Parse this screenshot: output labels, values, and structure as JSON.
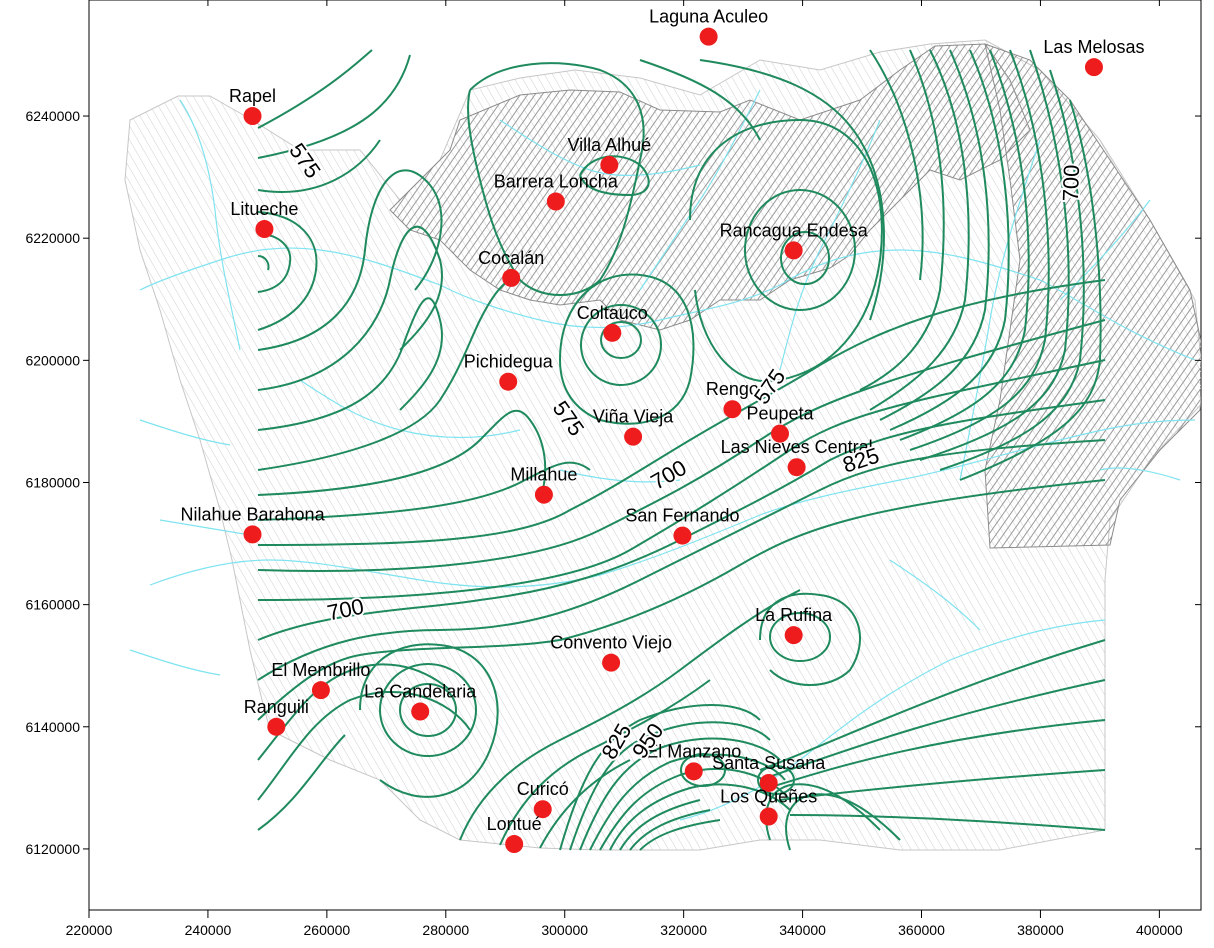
{
  "map": {
    "x_ticks": [
      "220000",
      "240000",
      "260000",
      "280000",
      "300000",
      "320000",
      "340000",
      "360000",
      "380000",
      "400000"
    ],
    "y_ticks": [
      "6120000",
      "6140000",
      "6160000",
      "6180000",
      "6200000",
      "6220000",
      "6240000"
    ],
    "x_range": [
      220000,
      407000
    ],
    "y_range": [
      6110000,
      6259000
    ],
    "colors": {
      "contour": "#1f8a5e",
      "station": "#ee1c1c",
      "river": "#7fe3f0",
      "terrain": "#a8a8a8",
      "terrain_light": "#d8d8d8",
      "frame": "#000000"
    }
  },
  "stations": [
    {
      "name": "Laguna Aculeo",
      "x": 324200,
      "y": 6253000
    },
    {
      "name": "Las Melosas",
      "x": 389000,
      "y": 6248000
    },
    {
      "name": "Rapel",
      "x": 247500,
      "y": 6240000
    },
    {
      "name": "Villa Alhué",
      "x": 307500,
      "y": 6232000
    },
    {
      "name": "Barrera Loncha",
      "x": 298500,
      "y": 6226000
    },
    {
      "name": "Litueche",
      "x": 249500,
      "y": 6221500
    },
    {
      "name": "Rancagua Endesa",
      "x": 338500,
      "y": 6218000
    },
    {
      "name": "Cocalán",
      "x": 291000,
      "y": 6213500
    },
    {
      "name": "Coltauco",
      "x": 308000,
      "y": 6204500
    },
    {
      "name": "Pichidegua",
      "x": 290500,
      "y": 6196500
    },
    {
      "name": "Rengo",
      "x": 328200,
      "y": 6192000
    },
    {
      "name": "Peupeta",
      "x": 336200,
      "y": 6188000
    },
    {
      "name": "Viña Vieja",
      "x": 311500,
      "y": 6187500
    },
    {
      "name": "Las Nieves Central",
      "x": 339000,
      "y": 6182500
    },
    {
      "name": "Millahue",
      "x": 296500,
      "y": 6178000
    },
    {
      "name": "Nilahue Barahona",
      "x": 247500,
      "y": 6171500
    },
    {
      "name": "San Fernando",
      "x": 319800,
      "y": 6171300
    },
    {
      "name": "La Rufina",
      "x": 338500,
      "y": 6155000
    },
    {
      "name": "Convento Viejo",
      "x": 307800,
      "y": 6150500
    },
    {
      "name": "El Membrillo",
      "x": 259000,
      "y": 6146000
    },
    {
      "name": "La Candelaria",
      "x": 275700,
      "y": 6142500
    },
    {
      "name": "Ranguili",
      "x": 251500,
      "y": 6140000
    },
    {
      "name": "El Manzano",
      "x": 321700,
      "y": 6132700
    },
    {
      "name": "Santa Susana",
      "x": 334300,
      "y": 6130800
    },
    {
      "name": "Curicó",
      "x": 296300,
      "y": 6126500
    },
    {
      "name": "Los Queñes",
      "x": 334300,
      "y": 6125300
    },
    {
      "name": "Lontué",
      "x": 291500,
      "y": 6120800
    }
  ],
  "contour_labels": [
    {
      "text": "575",
      "x": 255300,
      "y": 6232000,
      "angle": 55
    },
    {
      "text": "575",
      "x": 299600,
      "y": 6189800,
      "angle": 55
    },
    {
      "text": "575",
      "x": 335500,
      "y": 6195000,
      "angle": -55
    },
    {
      "text": "700",
      "x": 386400,
      "y": 6229000,
      "angle": -88
    },
    {
      "text": "700",
      "x": 263400,
      "y": 6158000,
      "angle": -12
    },
    {
      "text": "700",
      "x": 318100,
      "y": 6180200,
      "angle": -30
    },
    {
      "text": "825",
      "x": 350200,
      "y": 6182500,
      "angle": -18
    },
    {
      "text": "825",
      "x": 309800,
      "y": 6137000,
      "angle": -60
    },
    {
      "text": "950",
      "x": 315000,
      "y": 6137000,
      "angle": -55
    }
  ]
}
